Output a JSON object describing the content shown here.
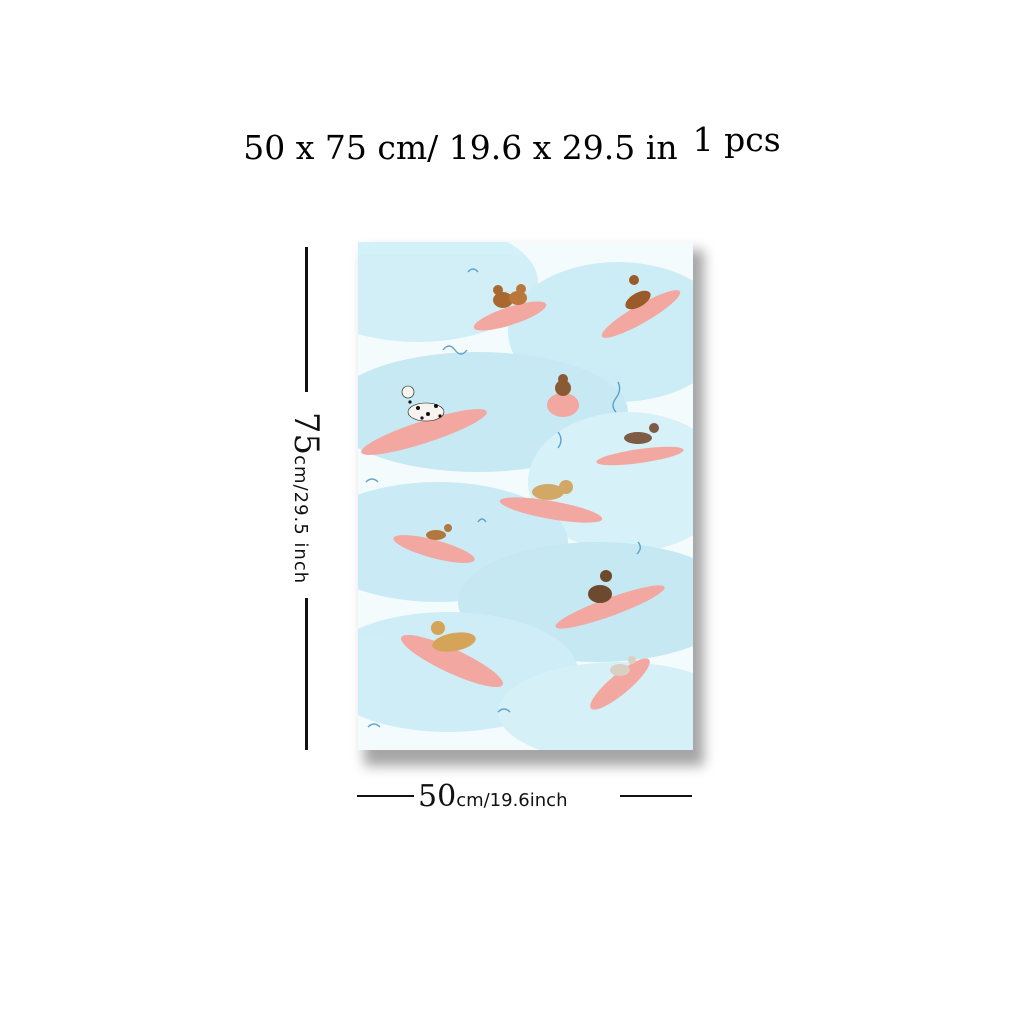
{
  "header": {
    "size_text": "50 x 75 cm/ 19.6  x  29.5 in",
    "pcs_text": "1 pcs"
  },
  "poster": {
    "subject": "watercolor dogs surfing on pink surfboards",
    "colors": {
      "water": "#bfe6f2",
      "board": "#f2a7a0",
      "dog_tan": "#c99a55",
      "dog_brown": "#8a5a32",
      "outline": "#111111"
    }
  },
  "dimensions": {
    "height_value": "75",
    "height_unit_text": "cm/29.5 inch",
    "width_value": "50",
    "width_unit_text": "cm/19.6inch"
  }
}
